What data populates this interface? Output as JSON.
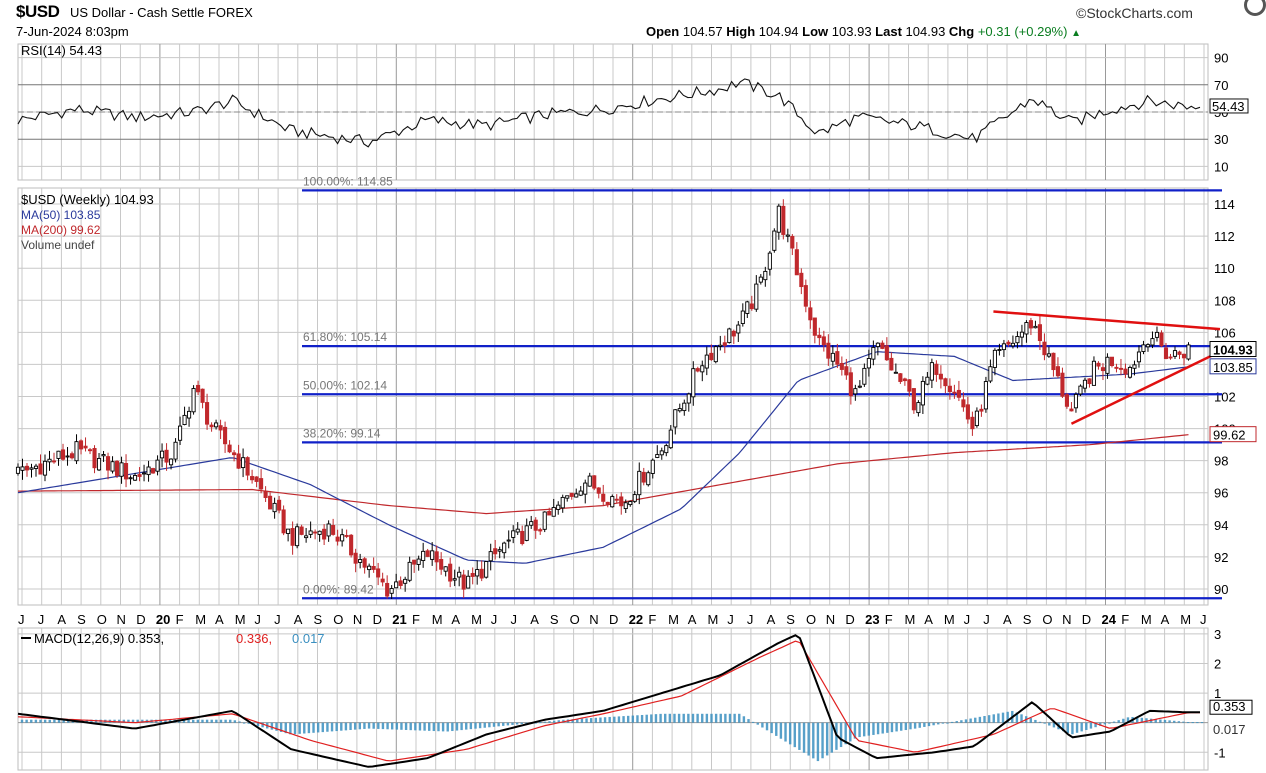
{
  "header": {
    "symbol": "$USD",
    "description": "US Dollar - Cash Settle FOREX",
    "date": "7-Jun-2024 8:03pm",
    "brand": "©StockCharts.com",
    "open_label": "Open",
    "open": "104.57",
    "high_label": "High",
    "high": "104.94",
    "low_label": "Low",
    "low": "103.93",
    "last_label": "Last",
    "last": "104.93",
    "chg_label": "Chg",
    "chg": "+0.31 (+0.29%)",
    "chg_arrow": "▲"
  },
  "colors": {
    "grid": "#c8c8c8",
    "fib": "#1020c8",
    "ma50": "#2a3a9c",
    "ma200": "#c0282c",
    "trend": "#e01010",
    "up": "#000000",
    "down": "#c0282c",
    "hist": "#3a8fc0"
  },
  "chart_data": [
    {
      "type": "line",
      "title": "RSI(14) 54.43",
      "ylim": [
        0,
        100
      ],
      "yticks": [
        "90",
        "70",
        "50",
        "30",
        "10"
      ],
      "current_label": "54.43",
      "series": [
        {
          "name": "RSI(14)",
          "x": [
            "2019-06",
            "2019-09",
            "2019-12",
            "2020-03",
            "2020-05",
            "2020-08",
            "2020-12",
            "2021-03",
            "2021-06",
            "2021-09",
            "2021-12",
            "2022-03",
            "2022-06",
            "2022-07",
            "2022-09",
            "2022-11",
            "2023-01",
            "2023-04",
            "2023-07",
            "2023-10",
            "2023-12",
            "2024-02",
            "2024-04",
            "2024-06"
          ],
          "values": [
            44,
            52,
            46,
            50,
            58,
            36,
            28,
            44,
            40,
            48,
            52,
            60,
            67,
            72,
            62,
            34,
            46,
            40,
            30,
            60,
            42,
            52,
            58,
            54
          ]
        }
      ]
    },
    {
      "type": "line",
      "title": "$USD (Weekly) 104.93",
      "ylim": [
        89,
        115
      ],
      "yticks": [
        "114",
        "112",
        "110",
        "108",
        "106",
        "104",
        "102",
        "100",
        "98",
        "96",
        "94",
        "92",
        "90"
      ],
      "current_labels": [
        "104.93",
        "103.85",
        "99.62"
      ],
      "fib_levels": [
        {
          "label": "100.00%: 114.85",
          "value": 114.85
        },
        {
          "label": "61.80%: 105.14",
          "value": 105.14
        },
        {
          "label": "50.00%: 102.14",
          "value": 102.14
        },
        {
          "label": "38.20%: 99.14",
          "value": 99.14
        },
        {
          "label": "0.00%: 89.42",
          "value": 89.42
        }
      ],
      "x_labels": [
        "J",
        "J",
        "A",
        "S",
        "O",
        "N",
        "D",
        "20",
        "F",
        "M",
        "A",
        "M",
        "J",
        "J",
        "A",
        "S",
        "O",
        "N",
        "D",
        "21",
        "F",
        "M",
        "A",
        "M",
        "J",
        "J",
        "A",
        "S",
        "O",
        "N",
        "D",
        "22",
        "F",
        "M",
        "A",
        "M",
        "J",
        "J",
        "A",
        "S",
        "O",
        "N",
        "D",
        "23",
        "F",
        "M",
        "A",
        "M",
        "J",
        "J",
        "A",
        "S",
        "O",
        "N",
        "D",
        "24",
        "F",
        "M",
        "A",
        "M",
        "J"
      ],
      "series": [
        {
          "name": "$USD (Weekly) 104.93",
          "x": [
            "2019-06",
            "2019-09",
            "2019-12",
            "2020-02",
            "2020-03",
            "2020-04",
            "2020-06",
            "2020-08",
            "2020-10",
            "2021-01",
            "2021-03",
            "2021-05",
            "2021-07",
            "2021-09",
            "2021-11",
            "2022-01",
            "2022-03",
            "2022-05",
            "2022-07",
            "2022-08",
            "2022-09",
            "2022-11",
            "2022-12",
            "2023-01",
            "2023-02",
            "2023-04",
            "2023-05",
            "2023-06",
            "2023-07",
            "2023-08",
            "2023-10",
            "2023-12",
            "2024-01",
            "2024-02",
            "2024-03",
            "2024-04",
            "2024-05",
            "2024-06"
          ],
          "values": [
            97.2,
            98.6,
            97.0,
            98.5,
            102.5,
            100.0,
            97.0,
            93.2,
            93.8,
            89.9,
            92.2,
            90.2,
            92.8,
            94.2,
            96.8,
            95.3,
            98.8,
            104.2,
            106.5,
            108.8,
            113.5,
            105.5,
            104.0,
            102.0,
            105.2,
            101.5,
            104.0,
            102.5,
            99.9,
            104.2,
            106.7,
            101.0,
            103.5,
            104.3,
            103.8,
            106.0,
            104.5,
            104.93
          ]
        },
        {
          "name": "MA(50) 103.85",
          "x": [
            "2019-06",
            "2019-12",
            "2020-05",
            "2020-09",
            "2021-01",
            "2021-05",
            "2021-08",
            "2021-12",
            "2022-04",
            "2022-07",
            "2022-10",
            "2023-02",
            "2023-06",
            "2023-09",
            "2023-12",
            "2024-03",
            "2024-06"
          ],
          "values": [
            96.0,
            97.2,
            98.2,
            96.5,
            94.0,
            91.8,
            91.6,
            92.6,
            95.0,
            98.5,
            103.0,
            104.8,
            104.5,
            103.0,
            103.2,
            103.4,
            103.85
          ]
        },
        {
          "name": "MA(200) 99.62",
          "x": [
            "2019-06",
            "2020-06",
            "2021-01",
            "2021-06",
            "2021-12",
            "2022-06",
            "2022-12",
            "2023-06",
            "2024-01",
            "2024-06"
          ],
          "values": [
            96.1,
            96.2,
            95.2,
            94.7,
            95.2,
            96.5,
            97.8,
            98.5,
            99.0,
            99.62
          ]
        }
      ]
    },
    {
      "type": "line",
      "title": "MACD(12,26,9) 0.353, 0.336, 0.017",
      "legend": [
        "MACD(12,26,9) 0.353,",
        "0.336,",
        "0.017"
      ],
      "ylim": [
        -1.6,
        3.2
      ],
      "yticks": [
        "3",
        "2",
        "1",
        "-1"
      ],
      "current_labels": [
        "0.353",
        "0.017"
      ],
      "series": [
        {
          "name": "MACD(12,26,9)",
          "x": [
            "2019-06",
            "2019-12",
            "2020-05",
            "2020-08",
            "2020-12",
            "2021-03",
            "2021-06",
            "2021-09",
            "2021-12",
            "2022-03",
            "2022-06",
            "2022-09",
            "2022-10",
            "2022-12",
            "2023-02",
            "2023-05",
            "2023-07",
            "2023-10",
            "2023-12",
            "2024-02",
            "2024-04",
            "2024-06"
          ],
          "values": [
            0.3,
            -0.2,
            0.4,
            -0.9,
            -1.5,
            -1.2,
            -0.4,
            0.1,
            0.4,
            1.0,
            1.6,
            2.7,
            3.0,
            -0.5,
            -1.2,
            -1.0,
            -0.8,
            0.7,
            -0.5,
            -0.3,
            0.4,
            0.35
          ]
        },
        {
          "name": "Signal",
          "x": [
            "2019-06",
            "2019-12",
            "2020-05",
            "2020-09",
            "2021-01",
            "2021-05",
            "2021-09",
            "2021-12",
            "2022-04",
            "2022-08",
            "2022-10",
            "2023-01",
            "2023-04",
            "2023-08",
            "2023-11",
            "2024-02",
            "2024-06"
          ],
          "values": [
            0.2,
            0.0,
            0.3,
            -0.6,
            -1.3,
            -0.9,
            -0.1,
            0.3,
            0.9,
            2.2,
            2.8,
            -0.6,
            -1.0,
            -0.4,
            0.5,
            -0.2,
            0.34
          ]
        },
        {
          "name": "Histogram",
          "x": [
            "2019-06",
            "2020-05",
            "2020-08",
            "2020-12",
            "2021-04",
            "2021-10",
            "2022-03",
            "2022-07",
            "2022-11",
            "2023-01",
            "2023-04",
            "2023-09",
            "2023-12",
            "2024-03",
            "2024-06"
          ],
          "values": [
            0.1,
            0.1,
            -0.4,
            -0.2,
            -0.3,
            0.1,
            0.3,
            0.3,
            -1.3,
            -0.5,
            -0.2,
            0.4,
            -0.4,
            0.2,
            0.02
          ]
        }
      ]
    }
  ]
}
